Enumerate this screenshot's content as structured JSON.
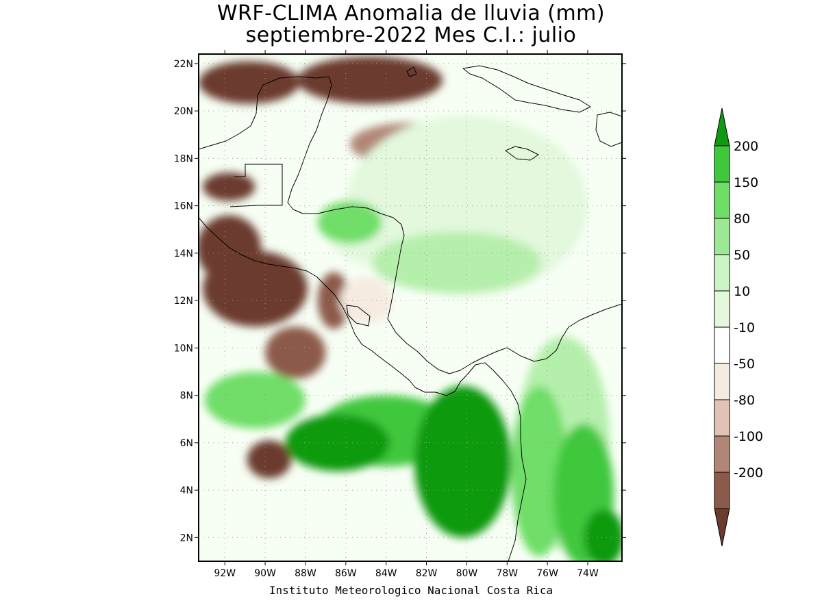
{
  "header": {
    "title_line1": "WRF-CLIMA Anomalia de lluvia (mm)",
    "title_line2": "septiembre-2022 Mes C.I.: julio"
  },
  "footer": {
    "credit": "Instituto Meteorologico Nacional Costa Rica"
  },
  "map": {
    "lon_range": [
      -93.3,
      -72.3
    ],
    "lat_range": [
      1,
      22.4
    ],
    "lat_ticks": [
      {
        "value": 22,
        "label": "22N"
      },
      {
        "value": 20,
        "label": "20N"
      },
      {
        "value": 18,
        "label": "18N"
      },
      {
        "value": 16,
        "label": "16N"
      },
      {
        "value": 14,
        "label": "14N"
      },
      {
        "value": 12,
        "label": "12N"
      },
      {
        "value": 10,
        "label": "10N"
      },
      {
        "value": 8,
        "label": "8N"
      },
      {
        "value": 6,
        "label": "6N"
      },
      {
        "value": 4,
        "label": "4N"
      },
      {
        "value": 2,
        "label": "2N"
      }
    ],
    "lon_ticks": [
      {
        "value": -92,
        "label": "92W"
      },
      {
        "value": -90,
        "label": "90W"
      },
      {
        "value": -88,
        "label": "88W"
      },
      {
        "value": -86,
        "label": "86W"
      },
      {
        "value": -84,
        "label": "84W"
      },
      {
        "value": -82,
        "label": "82W"
      },
      {
        "value": -80,
        "label": "80W"
      },
      {
        "value": -78,
        "label": "78W"
      },
      {
        "value": -76,
        "label": "76W"
      },
      {
        "value": -74,
        "label": "74W"
      }
    ],
    "grid": true,
    "anomaly_regions": [
      {
        "category": "below -200",
        "color": "#6b3b2e",
        "lon": -90.5,
        "lat": 12.5,
        "rx": 2.6,
        "ry": 1.6
      },
      {
        "category": "below -200",
        "color": "#6b3b2e",
        "lon": -91.8,
        "lat": 14.2,
        "rx": 1.6,
        "ry": 1.4
      },
      {
        "category": "below -200",
        "color": "#6b3b2e",
        "lon": -84.8,
        "lat": 21.3,
        "rx": 3.6,
        "ry": 1.0
      },
      {
        "category": "below -200",
        "color": "#6b3b2e",
        "lon": -90.8,
        "lat": 21.2,
        "rx": 2.5,
        "ry": 0.9
      },
      {
        "category": "below -200",
        "color": "#6b3b2e",
        "lon": -91.8,
        "lat": 16.8,
        "rx": 1.3,
        "ry": 0.6
      },
      {
        "category": "below -200",
        "color": "#6b3b2e",
        "lon": -89.8,
        "lat": 5.3,
        "rx": 1.1,
        "ry": 0.8
      },
      {
        "category": "-200 to -100",
        "color": "#8c5a4a",
        "lon": -88.5,
        "lat": 9.8,
        "rx": 1.5,
        "ry": 1.1
      },
      {
        "category": "-200 to -100",
        "color": "#8c5a4a",
        "lon": -86.6,
        "lat": 12.0,
        "rx": 0.8,
        "ry": 1.2
      },
      {
        "category": "-100 to -80",
        "color": "#b08777",
        "lon": -82.8,
        "lat": 18.6,
        "rx": 3.0,
        "ry": 0.9
      },
      {
        "category": "-80 to -50",
        "color": "#e0c3b6",
        "lon": -84.2,
        "lat": 17.2,
        "rx": 1.2,
        "ry": 0.8
      },
      {
        "category": "-50 to -10",
        "color": "#f6ebe1",
        "lon": -85.0,
        "lat": 12.0,
        "rx": 1.3,
        "ry": 1.0
      },
      {
        "category": "10 to 50",
        "color": "#e3f8dd",
        "lon": -80.0,
        "lat": 16.0,
        "rx": 6.0,
        "ry": 3.8
      },
      {
        "category": "10 to 50",
        "color": "#e3f8dd",
        "lon": -84.0,
        "lat": 15.0,
        "rx": 3.0,
        "ry": 1.6
      },
      {
        "category": "50 to 80",
        "color": "#b5efac",
        "lon": -80.5,
        "lat": 13.6,
        "rx": 4.2,
        "ry": 1.3
      },
      {
        "category": "50 to 80",
        "color": "#b5efac",
        "lon": -75.2,
        "lat": 6.0,
        "rx": 2.3,
        "ry": 4.5
      },
      {
        "category": "80 to 150",
        "color": "#6fde67",
        "lon": -85.8,
        "lat": 15.3,
        "rx": 1.6,
        "ry": 0.9
      },
      {
        "category": "80 to 150",
        "color": "#6fde67",
        "lon": -90.5,
        "lat": 7.8,
        "rx": 2.5,
        "ry": 1.2
      },
      {
        "category": "80 to 150",
        "color": "#6fde67",
        "lon": -76.4,
        "lat": 4.8,
        "rx": 1.4,
        "ry": 3.6
      },
      {
        "category": "150 to 200",
        "color": "#3fc83c",
        "lon": -84.0,
        "lat": 6.5,
        "rx": 3.5,
        "ry": 1.5
      },
      {
        "category": "150 to 200",
        "color": "#3fc83c",
        "lon": -74.2,
        "lat": 3.8,
        "rx": 1.5,
        "ry": 3.0
      },
      {
        "category": "above 200",
        "color": "#119a11",
        "lon": -80.2,
        "lat": 5.2,
        "rx": 2.4,
        "ry": 3.2
      },
      {
        "category": "above 200",
        "color": "#119a11",
        "lon": -86.4,
        "lat": 6.0,
        "rx": 2.6,
        "ry": 1.2
      },
      {
        "category": "above 200",
        "color": "#119a11",
        "lon": -73.2,
        "lat": 2.0,
        "rx": 1.0,
        "ry": 1.2
      }
    ]
  },
  "colorbar": {
    "levels": [
      {
        "label": "200",
        "color": "#3fc83c"
      },
      {
        "label": "150",
        "color": "#6fde67"
      },
      {
        "label": "80",
        "color": "#9ce895"
      },
      {
        "label": "50",
        "color": "#ccf5c6"
      },
      {
        "label": "10",
        "color": "#e3f8dd"
      },
      {
        "label": "-10",
        "color": "#ffffff"
      },
      {
        "label": "-50",
        "color": "#f6ebe1"
      },
      {
        "label": "-80",
        "color": "#e0c3b6"
      },
      {
        "label": "-100",
        "color": "#b08777"
      },
      {
        "label": "-200",
        "color": "#8c5a4a"
      }
    ],
    "top_arrow_color": "#119a11",
    "bottom_arrow_color": "#6b3b2e"
  }
}
